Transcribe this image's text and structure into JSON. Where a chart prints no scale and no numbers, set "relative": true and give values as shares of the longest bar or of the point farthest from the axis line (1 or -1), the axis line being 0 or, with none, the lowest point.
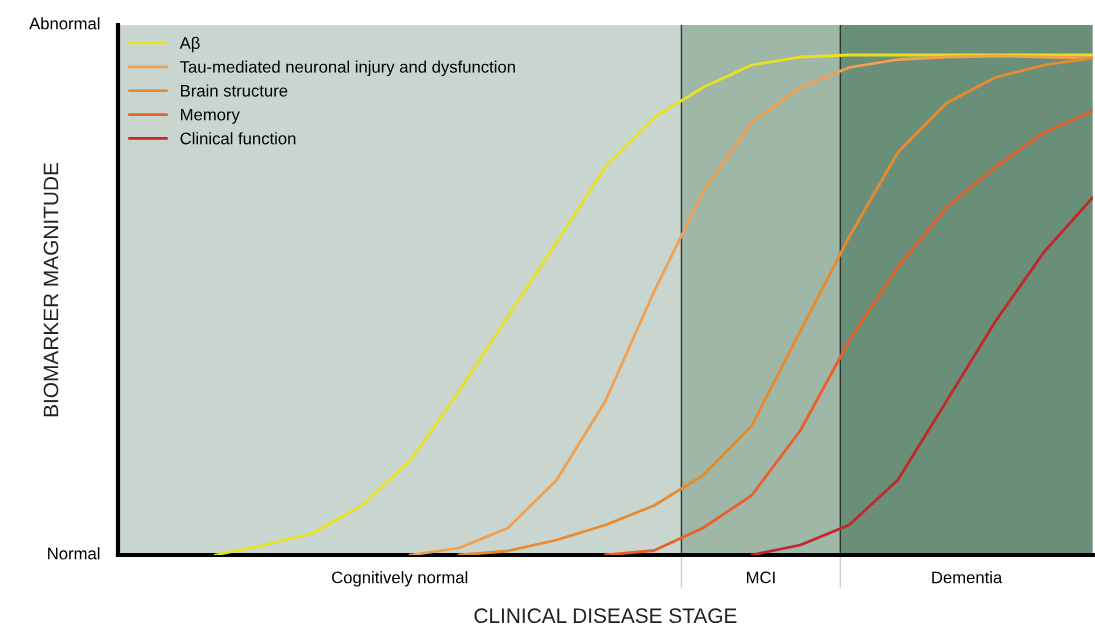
{
  "chart_data": {
    "type": "line",
    "xlabel": "CLINICAL DISEASE STAGE",
    "ylabel": "BIOMARKER MAGNITUDE",
    "categories": [
      null,
      null,
      null,
      null,
      null,
      null,
      null,
      null,
      null,
      null,
      null,
      null,
      null,
      null,
      null,
      null,
      null,
      null,
      null,
      null,
      null
    ],
    "relative": true,
    "tick_labels": false,
    "legend": "top left",
    "marker": "none",
    "line_style": "solid",
    "annotations": [
      "Normal",
      "Abnormal",
      "Cognitively normal",
      "MCI",
      "Dementia"
    ],
    "series": [
      {
        "name": "Aβ",
        "color": "#e8e020",
        "values": [
          null,
          null,
          0,
          0.02,
          0.044,
          0.099,
          0.189,
          0.328,
          0.477,
          0.626,
          0.776,
          0.875,
          0.935,
          0.98,
          0.996,
          1,
          1,
          1,
          1,
          1,
          1
        ]
      },
      {
        "name": "Tau-mediated neuronal injury and dysfunction",
        "color": "#f0a050",
        "values": [
          null,
          null,
          null,
          null,
          null,
          null,
          0,
          0.014,
          0.054,
          0.15,
          0.308,
          0.527,
          0.726,
          0.865,
          0.935,
          0.975,
          0.991,
          0.996,
          0.998,
          0.996,
          0.994
        ]
      },
      {
        "name": "Brain structure",
        "color": "#e88a30",
        "values": [
          null,
          null,
          null,
          null,
          null,
          null,
          null,
          0,
          0.008,
          0.03,
          0.06,
          0.099,
          0.159,
          0.258,
          0.448,
          0.636,
          0.805,
          0.904,
          0.955,
          0.98,
          0.994
        ]
      },
      {
        "name": "Memory",
        "color": "#e8602a",
        "values": [
          null,
          null,
          null,
          null,
          null,
          null,
          null,
          null,
          null,
          null,
          0,
          0.009,
          0.054,
          0.119,
          0.249,
          0.428,
          0.576,
          0.695,
          0.776,
          0.845,
          0.888
        ]
      },
      {
        "name": "Clinical function",
        "color": "#c0282a",
        "values": [
          null,
          null,
          null,
          null,
          null,
          null,
          null,
          null,
          null,
          null,
          null,
          null,
          null,
          0,
          0.02,
          0.06,
          0.15,
          0.308,
          0.467,
          0.606,
          0.715
        ]
      }
    ]
  }
}
